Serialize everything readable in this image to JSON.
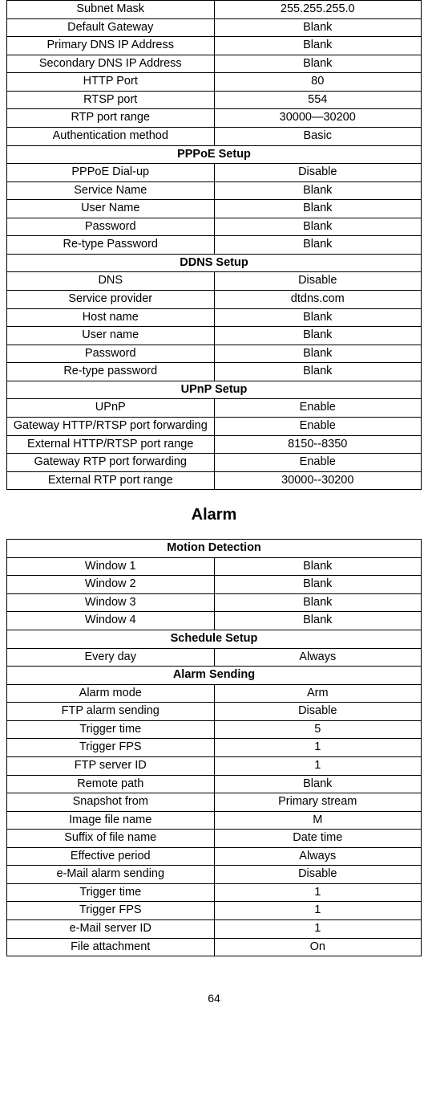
{
  "table1": {
    "rows": [
      {
        "label": "Subnet Mask",
        "value": "255.255.255.0"
      },
      {
        "label": "Default Gateway",
        "value": "Blank"
      },
      {
        "label": "Primary DNS IP Address",
        "value": "Blank"
      },
      {
        "label": "Secondary DNS IP Address",
        "value": "Blank"
      },
      {
        "label": "HTTP Port",
        "value": "80"
      },
      {
        "label": "RTSP port",
        "value": "554"
      },
      {
        "label": "RTP port range",
        "value": "30000—30200"
      },
      {
        "label": "Authentication method",
        "value": "Basic"
      }
    ],
    "pppoe_header": "PPPoE Setup",
    "pppoe": [
      {
        "label": "PPPoE Dial-up",
        "value": "Disable"
      },
      {
        "label": "Service Name",
        "value": "Blank"
      },
      {
        "label": "User Name",
        "value": "Blank"
      },
      {
        "label": "Password",
        "value": "Blank"
      },
      {
        "label": "Re-type Password",
        "value": "Blank"
      }
    ],
    "ddns_header": "DDNS Setup",
    "ddns": [
      {
        "label": "DNS",
        "value": "Disable"
      },
      {
        "label": "Service provider",
        "value": "dtdns.com"
      },
      {
        "label": "Host name",
        "value": "Blank"
      },
      {
        "label": "User name",
        "value": "Blank"
      },
      {
        "label": "Password",
        "value": "Blank"
      },
      {
        "label": "Re-type password",
        "value": "Blank"
      }
    ],
    "upnp_header": "UPnP Setup",
    "upnp": [
      {
        "label": "UPnP",
        "value": "Enable"
      },
      {
        "label": "Gateway HTTP/RTSP port forwarding",
        "value": "Enable"
      },
      {
        "label": "External HTTP/RTSP port range",
        "value": "8150--8350"
      },
      {
        "label": "Gateway RTP port forwarding",
        "value": "Enable"
      },
      {
        "label": "External RTP port range",
        "value": "30000--30200"
      }
    ]
  },
  "alarm_title": "Alarm",
  "table2": {
    "motion_header": "Motion Detection",
    "motion": [
      {
        "label": "Window 1",
        "value": "Blank"
      },
      {
        "label": "Window 2",
        "value": "Blank"
      },
      {
        "label": "Window 3",
        "value": "Blank"
      },
      {
        "label": "Window 4",
        "value": "Blank"
      }
    ],
    "schedule_header": "Schedule Setup",
    "schedule": [
      {
        "label": "Every day",
        "value": "Always"
      }
    ],
    "sending_header": "Alarm Sending",
    "sending": [
      {
        "label": "Alarm mode",
        "value": "Arm"
      },
      {
        "label": "FTP alarm sending",
        "value": "Disable"
      },
      {
        "label": "Trigger time",
        "value": "5"
      },
      {
        "label": "Trigger FPS",
        "value": "1"
      },
      {
        "label": "FTP server ID",
        "value": "1"
      },
      {
        "label": "Remote path",
        "value": "Blank"
      },
      {
        "label": "Snapshot from",
        "value": "Primary stream"
      },
      {
        "label": "Image file name",
        "value": "M"
      },
      {
        "label": "Suffix of file name",
        "value": "Date time"
      },
      {
        "label": "Effective period",
        "value": "Always"
      },
      {
        "label": "e-Mail alarm sending",
        "value": "Disable"
      },
      {
        "label": "Trigger time",
        "value": "1"
      },
      {
        "label": "Trigger FPS",
        "value": "1"
      },
      {
        "label": "e-Mail server ID",
        "value": "1"
      },
      {
        "label": "File attachment",
        "value": "On"
      }
    ]
  },
  "page_number": "64",
  "colors": {
    "border": "#000000",
    "background": "#ffffff",
    "text": "#000000"
  },
  "typography": {
    "body_fontsize_pt": 11,
    "title_fontsize_pt": 15,
    "font_family": "Arial"
  }
}
